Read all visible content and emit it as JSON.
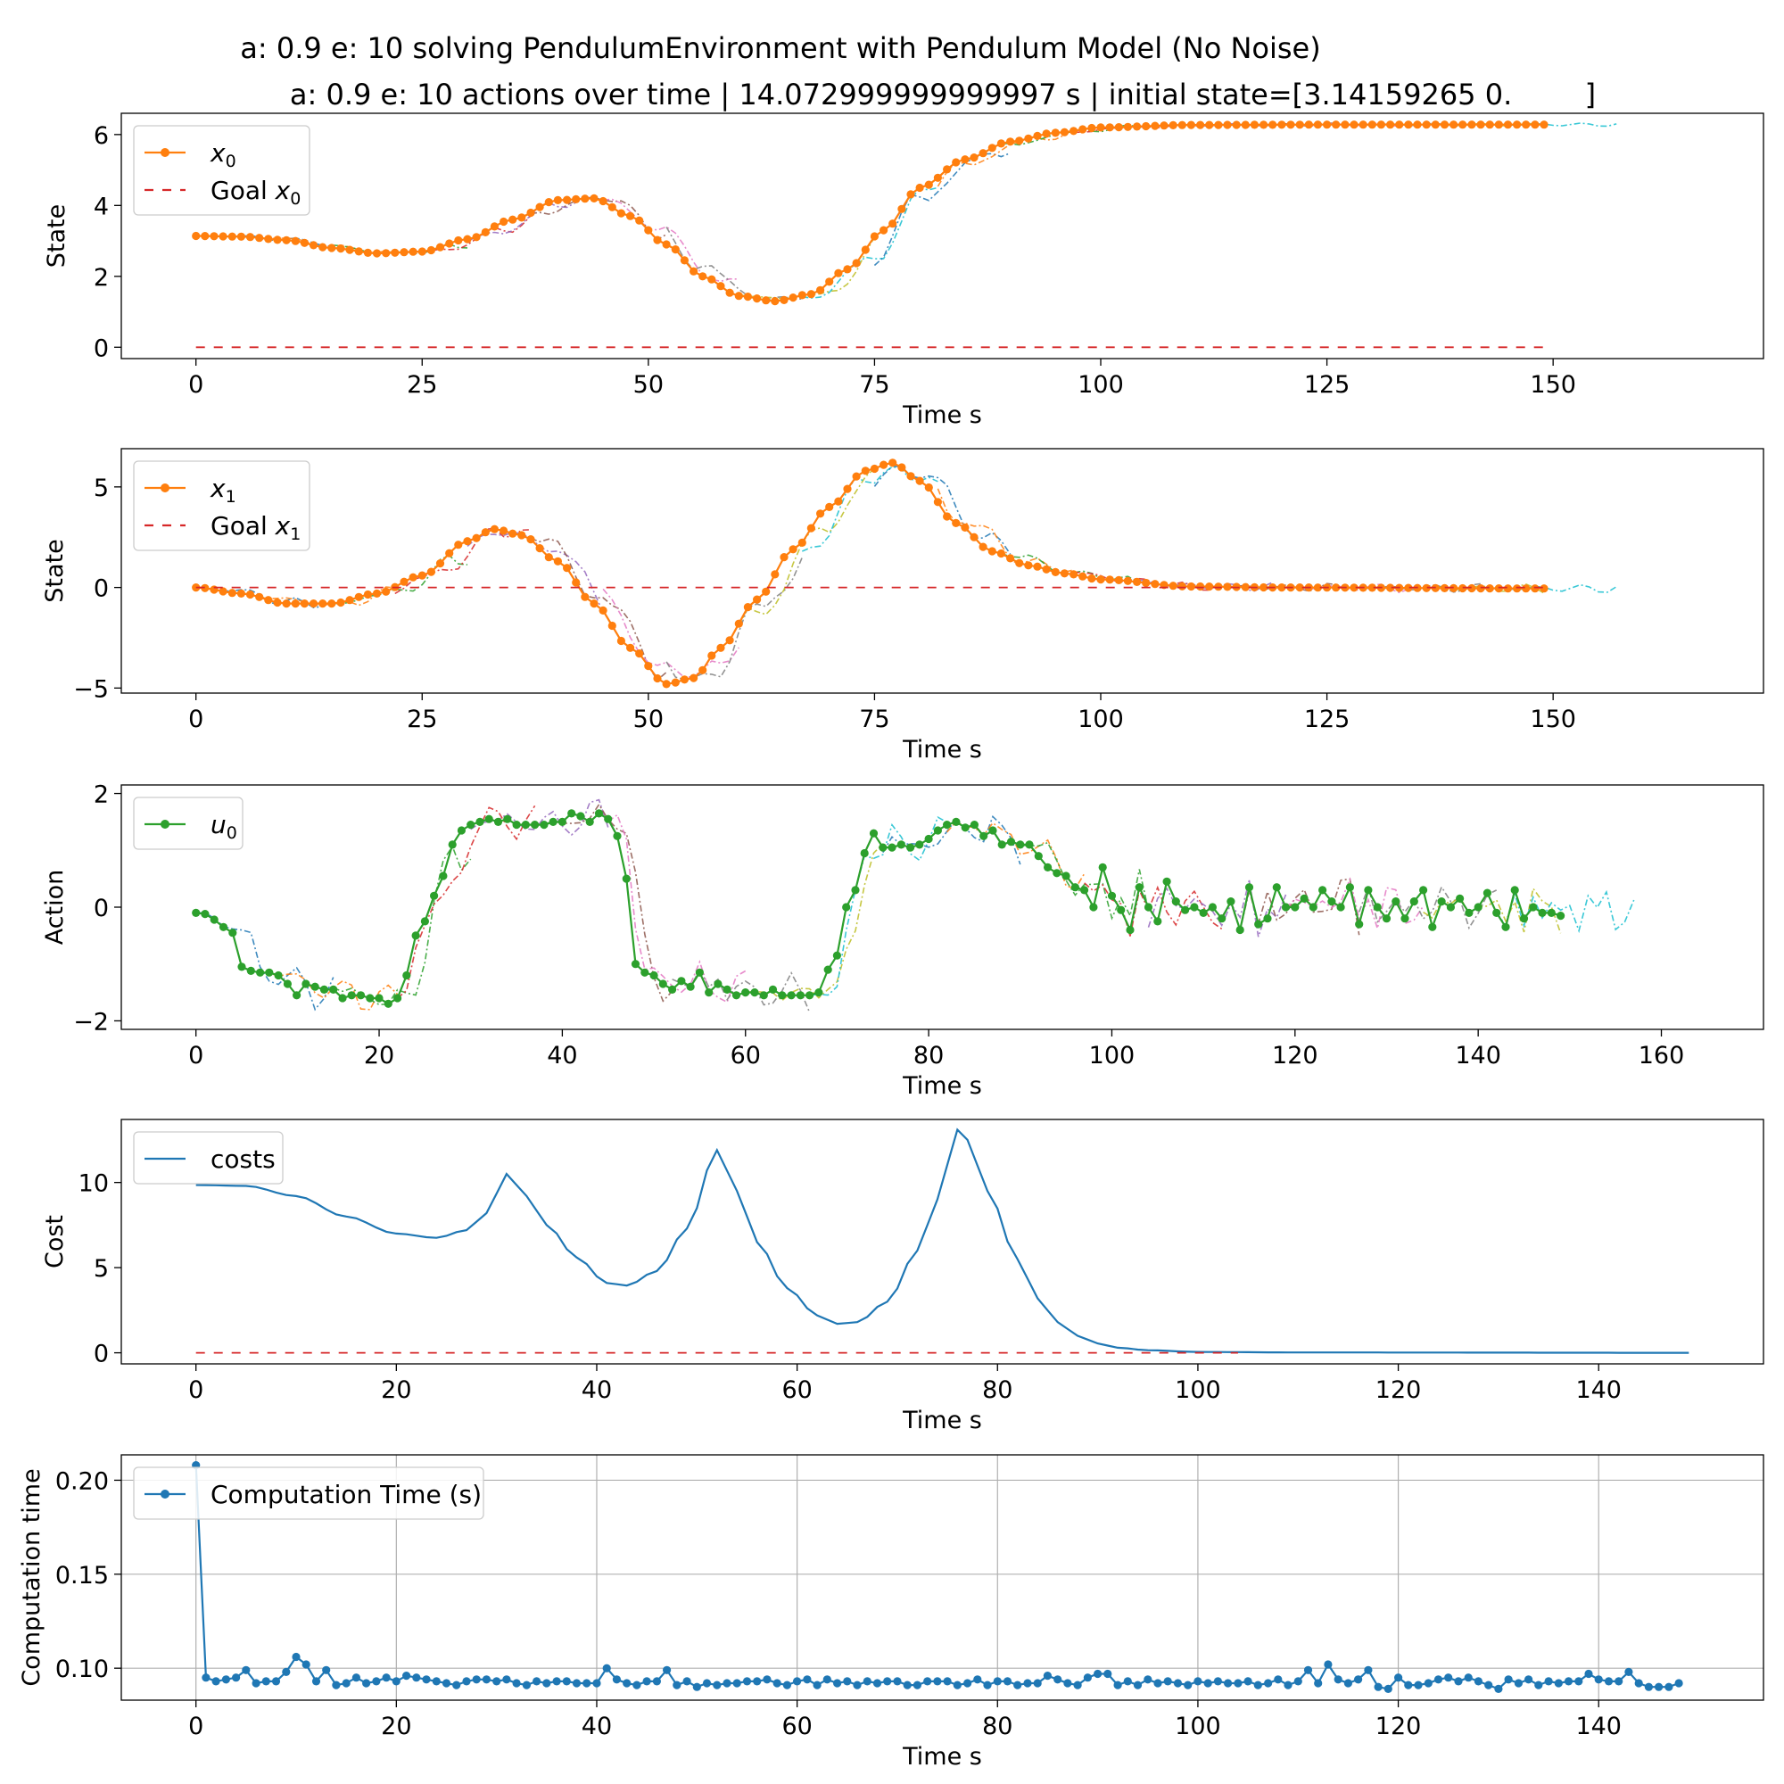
{
  "figure": {
    "title_line1": "a: 0.9 e: 10 solving PendulumEnvironment with Pendulum Model (No Noise)",
    "title_line2": "a: 0.9 e: 10 actions over time | 14.072999999999997 s | initial state=[3.14159265 0.        ]"
  },
  "colors": {
    "state": "#ff7f0e",
    "action": "#2ca02c",
    "cost": "#1f77b4",
    "compute": "#1f77b4",
    "goal": "#d62728",
    "prediction_palette": [
      "#1f77b4",
      "#ff7f0e",
      "#2ca02c",
      "#d62728",
      "#9467bd",
      "#8c564b",
      "#e377c2",
      "#7f7f7f",
      "#bcbd22",
      "#17becf"
    ]
  },
  "chart_data": [
    {
      "type": "line",
      "xlabel": "Time s",
      "ylabel": "State",
      "xlim": [
        -8.25,
        173.25
      ],
      "ylim": [
        -0.32,
        6.6
      ],
      "xticks": [
        0,
        25,
        50,
        75,
        100,
        125,
        150
      ],
      "yticks": [
        0,
        2,
        4,
        6
      ],
      "ytick_labels": [
        "0",
        "2",
        "4",
        "6"
      ],
      "grid": false,
      "legend": "upper-left",
      "legend_entries": [
        {
          "label": "x",
          "sub": "0",
          "style": "marker-line",
          "color": "#ff7f0e"
        },
        {
          "label": "Goal x",
          "sub": "0",
          "style": "dashed",
          "color": "#d62728"
        }
      ],
      "series": [
        {
          "name": "x_0",
          "style": "marker-line",
          "x_range": [
            0,
            149
          ],
          "knots": [
            [
              0,
              3.14
            ],
            [
              5,
              3.12
            ],
            [
              10,
              3.02
            ],
            [
              15,
              2.8
            ],
            [
              20,
              2.65
            ],
            [
              25,
              2.7
            ],
            [
              30,
              3.05
            ],
            [
              35,
              3.6
            ],
            [
              40,
              4.15
            ],
            [
              44,
              4.2
            ],
            [
              48,
              3.7
            ],
            [
              52,
              2.9
            ],
            [
              56,
              2.0
            ],
            [
              60,
              1.45
            ],
            [
              64,
              1.3
            ],
            [
              68,
              1.5
            ],
            [
              72,
              2.2
            ],
            [
              76,
              3.3
            ],
            [
              80,
              4.5
            ],
            [
              85,
              5.3
            ],
            [
              90,
              5.8
            ],
            [
              95,
              6.05
            ],
            [
              100,
              6.2
            ],
            [
              110,
              6.27
            ],
            [
              125,
              6.28
            ],
            [
              149,
              6.28
            ]
          ]
        },
        {
          "name": "Goal x_0",
          "style": "dashed",
          "x_range": [
            0,
            149
          ],
          "constant": 0
        }
      ],
      "predictions": {
        "count": 20,
        "horizon": 15,
        "source": 0,
        "jitter": 0.06,
        "style": "dashdot"
      }
    },
    {
      "type": "line",
      "xlabel": "Time s",
      "ylabel": "State",
      "xlim": [
        -8.25,
        173.25
      ],
      "ylim": [
        -5.25,
        6.9
      ],
      "xticks": [
        0,
        25,
        50,
        75,
        100,
        125,
        150
      ],
      "yticks": [
        -5,
        0,
        5
      ],
      "ytick_labels": [
        "−5",
        "0",
        "5"
      ],
      "grid": false,
      "legend": "upper-left",
      "legend_entries": [
        {
          "label": "x",
          "sub": "1",
          "style": "marker-line",
          "color": "#ff7f0e"
        },
        {
          "label": "Goal x",
          "sub": "1",
          "style": "dashed",
          "color": "#d62728"
        }
      ],
      "series": [
        {
          "name": "x_1",
          "style": "marker-line",
          "x_range": [
            0,
            149
          ],
          "knots": [
            [
              0,
              0
            ],
            [
              5,
              -0.3
            ],
            [
              10,
              -0.8
            ],
            [
              15,
              -0.8
            ],
            [
              20,
              -0.3
            ],
            [
              25,
              0.6
            ],
            [
              30,
              2.3
            ],
            [
              33,
              2.9
            ],
            [
              36,
              2.6
            ],
            [
              40,
              1.3
            ],
            [
              44,
              -0.8
            ],
            [
              48,
              -3.0
            ],
            [
              52,
              -4.8
            ],
            [
              55,
              -4.5
            ],
            [
              58,
              -3.0
            ],
            [
              62,
              -0.6
            ],
            [
              66,
              1.9
            ],
            [
              70,
              4.0
            ],
            [
              74,
              5.8
            ],
            [
              77,
              6.2
            ],
            [
              80,
              5.3
            ],
            [
              84,
              3.2
            ],
            [
              88,
              1.8
            ],
            [
              92,
              1.1
            ],
            [
              96,
              0.7
            ],
            [
              100,
              0.4
            ],
            [
              110,
              0.05
            ],
            [
              120,
              0.0
            ],
            [
              149,
              -0.05
            ]
          ]
        },
        {
          "name": "Goal x_1",
          "style": "dashed",
          "x_range": [
            0,
            149
          ],
          "constant": 0
        }
      ],
      "predictions": {
        "count": 20,
        "horizon": 15,
        "source": 0,
        "jitter": 0.25,
        "style": "dashdot"
      }
    },
    {
      "type": "line",
      "xlabel": "Time s",
      "ylabel": "Action",
      "xlim": [
        -8.15,
        171.15
      ],
      "ylim": [
        -2.15,
        2.15
      ],
      "xticks": [
        0,
        20,
        40,
        60,
        80,
        100,
        120,
        140,
        160
      ],
      "yticks": [
        -2,
        0,
        2
      ],
      "ytick_labels": [
        "−2",
        "0",
        "2"
      ],
      "grid": false,
      "legend": "upper-left",
      "legend_entries": [
        {
          "label": "u",
          "sub": "0",
          "style": "marker-line",
          "color": "#2ca02c"
        }
      ],
      "series": [
        {
          "name": "u_0",
          "style": "marker-line",
          "x_range": [
            0,
            149
          ],
          "values": [
            -0.1,
            -0.12,
            -0.22,
            -0.35,
            -0.45,
            -1.05,
            -1.12,
            -1.15,
            -1.15,
            -1.2,
            -1.35,
            -1.55,
            -1.35,
            -1.4,
            -1.45,
            -1.45,
            -1.6,
            -1.55,
            -1.55,
            -1.6,
            -1.6,
            -1.7,
            -1.6,
            -1.2,
            -0.5,
            -0.25,
            0.2,
            0.55,
            1.1,
            1.35,
            1.45,
            1.5,
            1.55,
            1.5,
            1.55,
            1.45,
            1.45,
            1.45,
            1.45,
            1.5,
            1.5,
            1.65,
            1.6,
            1.5,
            1.65,
            1.55,
            1.25,
            0.5,
            -1.0,
            -1.15,
            -1.2,
            -1.35,
            -1.45,
            -1.3,
            -1.4,
            -1.15,
            -1.5,
            -1.35,
            -1.45,
            -1.55,
            -1.5,
            -1.5,
            -1.55,
            -1.45,
            -1.55,
            -1.55,
            -1.55,
            -1.55,
            -1.5,
            -1.1,
            -0.85,
            0.0,
            0.3,
            0.95,
            1.3,
            1.05,
            1.05,
            1.1,
            1.05,
            1.1,
            1.2,
            1.35,
            1.45,
            1.5,
            1.4,
            1.45,
            1.25,
            1.35,
            1.1,
            1.15,
            1.1,
            1.1,
            0.9,
            0.7,
            0.6,
            0.55,
            0.35,
            0.3,
            0.0,
            0.7,
            0.2,
            -0.05,
            -0.4,
            0.35,
            0.0,
            -0.25,
            0.45,
            0.1,
            -0.05,
            0.0,
            -0.1,
            0.0,
            -0.2,
            0.1,
            -0.4,
            0.35,
            -0.3,
            -0.2,
            0.35,
            0.0,
            0.0,
            0.15,
            0.0,
            0.3,
            0.1,
            0.0,
            0.35,
            -0.3,
            0.3,
            0.0,
            -0.2,
            0.1,
            -0.2,
            0.1,
            0.3,
            -0.35,
            0.1,
            0.0,
            0.15,
            -0.1,
            0.0,
            0.25,
            -0.1,
            -0.35,
            0.3,
            -0.2,
            0.0,
            -0.1,
            -0.1,
            -0.15,
            0.15,
            -0.25,
            0.2,
            -0.35
          ]
        },
        {
          "name": "u_0 predictions",
          "style": "dashdot",
          "x_range": [
            0,
            163
          ]
        }
      ],
      "predictions": {
        "count": 20,
        "horizon": 15,
        "source": 0,
        "jitter": 0.35,
        "style": "dashdot"
      }
    },
    {
      "type": "line",
      "xlabel": "Time s",
      "ylabel": "Cost",
      "xlim": [
        -7.45,
        156.45
      ],
      "ylim": [
        -0.65,
        13.7
      ],
      "xticks": [
        0,
        20,
        40,
        60,
        80,
        100,
        120,
        140
      ],
      "yticks": [
        0,
        5,
        10
      ],
      "ytick_labels": [
        "0",
        "5",
        "10"
      ],
      "grid": false,
      "legend": "upper-left",
      "legend_entries": [
        {
          "label": "costs",
          "sub": "",
          "style": "line",
          "color": "#1f77b4"
        }
      ],
      "series": [
        {
          "name": "costs",
          "style": "line",
          "x_range": [
            0,
            149
          ],
          "knots": [
            [
              0,
              9.85
            ],
            [
              5,
              9.8
            ],
            [
              10,
              9.2
            ],
            [
              15,
              8.0
            ],
            [
              20,
              7.0
            ],
            [
              24,
              6.75
            ],
            [
              27,
              7.2
            ],
            [
              29,
              8.2
            ],
            [
              31,
              10.5
            ],
            [
              33,
              9.2
            ],
            [
              35,
              7.5
            ],
            [
              38,
              5.6
            ],
            [
              41,
              4.1
            ],
            [
              43,
              3.95
            ],
            [
              46,
              4.8
            ],
            [
              49,
              7.3
            ],
            [
              52,
              11.9
            ],
            [
              54,
              9.5
            ],
            [
              56,
              6.5
            ],
            [
              59,
              3.8
            ],
            [
              62,
              2.2
            ],
            [
              64,
              1.7
            ],
            [
              66,
              1.8
            ],
            [
              69,
              3.0
            ],
            [
              72,
              6.0
            ],
            [
              74,
              9.0
            ],
            [
              76,
              13.1
            ],
            [
              77,
              12.5
            ],
            [
              79,
              9.5
            ],
            [
              82,
              5.5
            ],
            [
              84,
              3.2
            ],
            [
              86,
              1.8
            ],
            [
              88,
              1.0
            ],
            [
              90,
              0.55
            ],
            [
              92,
              0.3
            ],
            [
              95,
              0.15
            ],
            [
              100,
              0.05
            ],
            [
              110,
              0.02
            ],
            [
              149,
              0.0
            ]
          ]
        },
        {
          "name": "goal",
          "style": "dashed",
          "x_range": [
            0,
            104
          ],
          "constant": 0
        }
      ]
    },
    {
      "type": "line",
      "xlabel": "Time s",
      "ylabel": "Computation time",
      "xlim": [
        -7.45,
        156.45
      ],
      "ylim": [
        0.083,
        0.2135
      ],
      "xticks": [
        0,
        20,
        40,
        60,
        80,
        100,
        120,
        140
      ],
      "yticks": [
        0.1,
        0.15,
        0.2
      ],
      "ytick_labels": [
        "0.10",
        "0.15",
        "0.20"
      ],
      "grid": true,
      "legend": "upper-left",
      "legend_entries": [
        {
          "label": "Computation Time (s)",
          "sub": "",
          "style": "marker-line",
          "color": "#1f77b4"
        }
      ],
      "series": [
        {
          "name": "Computation Time (s)",
          "style": "marker-line",
          "x_range": [
            0,
            149
          ],
          "values": [
            0.208,
            0.095,
            0.093,
            0.094,
            0.095,
            0.099,
            0.092,
            0.093,
            0.093,
            0.098,
            0.106,
            0.102,
            0.093,
            0.099,
            0.091,
            0.092,
            0.095,
            0.092,
            0.093,
            0.095,
            0.093,
            0.096,
            0.095,
            0.094,
            0.093,
            0.092,
            0.091,
            0.093,
            0.094,
            0.094,
            0.093,
            0.094,
            0.092,
            0.091,
            0.093,
            0.092,
            0.093,
            0.093,
            0.092,
            0.092,
            0.092,
            0.1,
            0.094,
            0.092,
            0.091,
            0.093,
            0.093,
            0.099,
            0.091,
            0.093,
            0.09,
            0.092,
            0.091,
            0.092,
            0.092,
            0.093,
            0.093,
            0.094,
            0.092,
            0.091,
            0.093,
            0.094,
            0.091,
            0.094,
            0.092,
            0.093,
            0.091,
            0.093,
            0.092,
            0.093,
            0.093,
            0.091,
            0.091,
            0.093,
            0.093,
            0.093,
            0.091,
            0.092,
            0.094,
            0.091,
            0.093,
            0.093,
            0.091,
            0.092,
            0.092,
            0.096,
            0.094,
            0.092,
            0.091,
            0.095,
            0.097,
            0.097,
            0.091,
            0.093,
            0.091,
            0.094,
            0.092,
            0.093,
            0.092,
            0.091,
            0.093,
            0.092,
            0.093,
            0.092,
            0.092,
            0.093,
            0.091,
            0.092,
            0.094,
            0.091,
            0.093,
            0.099,
            0.092,
            0.102,
            0.094,
            0.092,
            0.094,
            0.099,
            0.09,
            0.089,
            0.095,
            0.091,
            0.091,
            0.092,
            0.094,
            0.095,
            0.093,
            0.095,
            0.093,
            0.091,
            0.089,
            0.094,
            0.092,
            0.094,
            0.091,
            0.093,
            0.092,
            0.093,
            0.093,
            0.097,
            0.094,
            0.093,
            0.093,
            0.098,
            0.092,
            0.09,
            0.09,
            0.09,
            0.092
          ]
        }
      ]
    }
  ]
}
